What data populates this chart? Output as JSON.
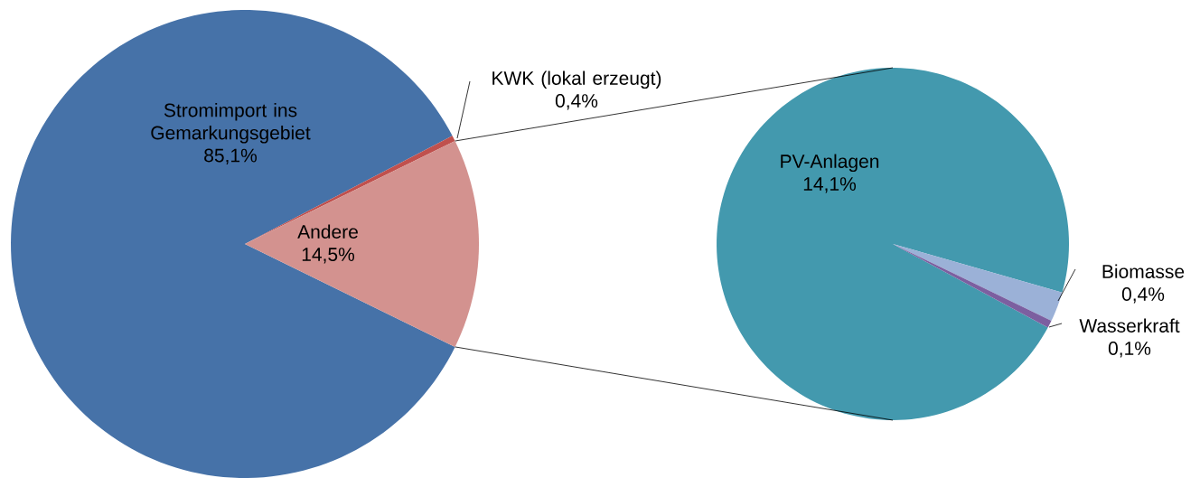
{
  "chart_data": [
    {
      "type": "pie",
      "categories": [
        "Stromimport ins Gemarkungsgebiet",
        "KWK (lokal erzeugt)",
        "Andere"
      ],
      "values": [
        85.1,
        0.4,
        14.5
      ],
      "colors": [
        "#4672a8",
        "#c0504d",
        "#d3928f"
      ],
      "value_labels": [
        "85,1%",
        "0,4%",
        "14,5%"
      ]
    },
    {
      "type": "pie",
      "categories": [
        "PV-Anlagen",
        "Biomasse",
        "Wasserkraft"
      ],
      "values": [
        14.1,
        0.4,
        0.1
      ],
      "colors": [
        "#4399ae",
        "#9bb1d7",
        "#7c5fa0"
      ],
      "value_labels": [
        "14,1%",
        "0,4%",
        "0,1%"
      ]
    }
  ]
}
